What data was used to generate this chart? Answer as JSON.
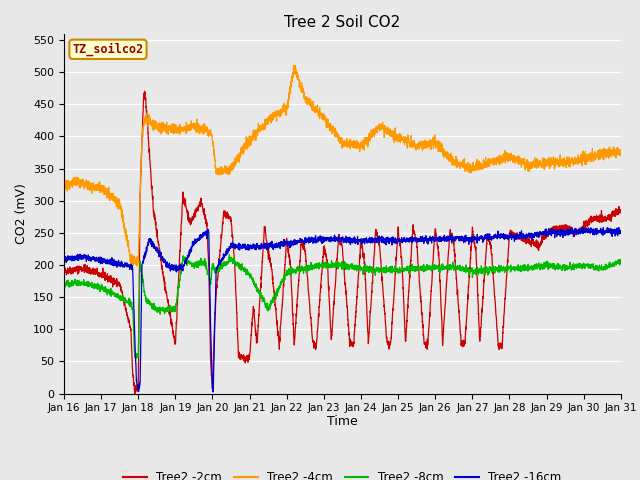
{
  "title": "Tree 2 Soil CO2",
  "xlabel": "Time",
  "ylabel": "CO2 (mV)",
  "ylim": [
    0,
    560
  ],
  "yticks": [
    0,
    50,
    100,
    150,
    200,
    250,
    300,
    350,
    400,
    450,
    500,
    550
  ],
  "bg_color": "#e8e8e8",
  "plot_bg_color": "#e8e8e8",
  "legend_label": "TZ_soilco2",
  "legend_box_color": "#ffffcc",
  "legend_box_border": "#cc8800",
  "line_colors": {
    "2cm": "#cc0000",
    "4cm": "#ff9900",
    "8cm": "#00bb00",
    "16cm": "#0000cc"
  },
  "line_labels": {
    "2cm": "Tree2 -2cm",
    "4cm": "Tree2 -4cm",
    "8cm": "Tree2 -8cm",
    "16cm": "Tree2 -16cm"
  }
}
